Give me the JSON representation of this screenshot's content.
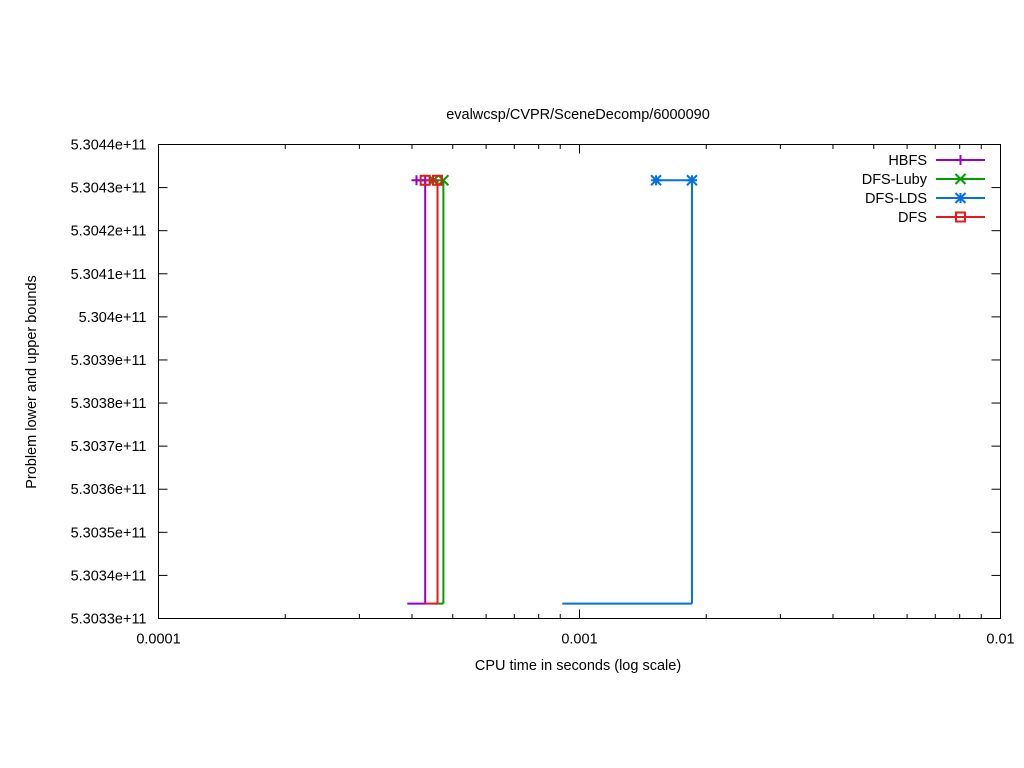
{
  "chart_data": {
    "type": "line",
    "title": "evalwcsp/CVPR/SceneDecomp/6000090",
    "xlabel": "CPU time in seconds (log scale)",
    "ylabel": "Problem lower and upper bounds",
    "x_scale": "log",
    "xlim": [
      0.0001,
      0.01
    ],
    "ylim": [
      530330000000,
      530440000000
    ],
    "x_ticks": [
      "0.0001",
      "0.001",
      "0.01"
    ],
    "y_ticks": [
      "5.3033e+11",
      "5.3034e+11",
      "5.3035e+11",
      "5.3036e+11",
      "5.3037e+11",
      "5.3038e+11",
      "5.3039e+11",
      "5.304e+11",
      "5.3041e+11",
      "5.3042e+11",
      "5.3043e+11",
      "5.3044e+11"
    ],
    "grid": false,
    "legend_position": "top-right",
    "series": [
      {
        "name": "HBFS",
        "color": "#9400d3",
        "marker": "plus",
        "lower_bound": [
          [
            0.00039,
            530333450000
          ],
          [
            0.00043,
            530333450000
          ]
        ],
        "upper_bound": [
          [
            0.00041,
            530431700000
          ],
          [
            0.00043,
            530431700000
          ]
        ]
      },
      {
        "name": "DFS-Luby",
        "color": "#009e00",
        "marker": "x",
        "lower_bound": [
          [
            0.00045,
            530333450000
          ],
          [
            0.000475,
            530333450000
          ]
        ],
        "upper_bound": [
          [
            0.00045,
            530431700000
          ],
          [
            0.000475,
            530431700000
          ]
        ]
      },
      {
        "name": "DFS-LDS",
        "color": "#0072e5",
        "marker": "asterisk",
        "lower_bound": [
          [
            0.00091,
            530333450000
          ],
          [
            0.00185,
            530333450000
          ]
        ],
        "upper_bound": [
          [
            0.00152,
            530431700000
          ],
          [
            0.00185,
            530431700000
          ]
        ]
      },
      {
        "name": "DFS",
        "color": "#e41a1c",
        "marker": "square",
        "lower_bound": [
          [
            0.00043,
            530333450000
          ],
          [
            0.00046,
            530333450000
          ]
        ],
        "upper_bound": [
          [
            0.00043,
            530431700000
          ],
          [
            0.00046,
            530431700000
          ]
        ]
      }
    ]
  }
}
